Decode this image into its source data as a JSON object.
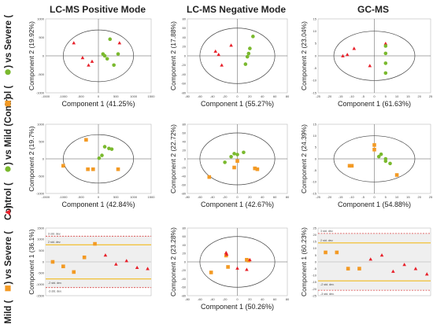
{
  "figure": {
    "column_titles": [
      "LC-MS Positive Mode",
      "LC-MS Negative Mode",
      "GC-MS"
    ],
    "row_labels": [
      {
        "pre": "Control (",
        "post": ") vs Severe (",
        "end": ")",
        "m1": "green-circle-icon",
        "m2": "red-triangle-icon"
      },
      {
        "pre": "Control (",
        "post": ") vs Mild (",
        "end": ")",
        "m1": "green-circle-icon",
        "m2": "orange-square-icon"
      },
      {
        "pre": "Mild (",
        "post": ") vs Severe (",
        "end": ")",
        "m1": "orange-square-icon",
        "m2": "red-triangle-icon"
      }
    ],
    "colors": {
      "control": "#7ab92e",
      "severe": "#e8202a",
      "mild": "#f39a24",
      "ellipse": "#444444",
      "band": "#efefef",
      "limit2": "#f2b400",
      "limit3": "#d94040"
    }
  },
  "chart_data": [
    {
      "type": "scatter",
      "id": "r0c0",
      "xlabel": "Component 1 (41.25%)",
      "ylabel": "Component 2 (19.92%)",
      "xlim": [
        -1500,
        1500
      ],
      "ylim": [
        -1000,
        1000
      ],
      "xticks": [
        -1500,
        -1000,
        -500,
        0,
        500,
        1000,
        1500
      ],
      "yticks": [
        -1000,
        -500,
        0,
        500,
        1000
      ],
      "ellipse": [
        [
          -1000,
          1000
        ],
        [
          -700,
          700
        ]
      ],
      "series": [
        {
          "group": "severe",
          "points": [
            [
              -700,
              350
            ],
            [
              -450,
              -50
            ],
            [
              -280,
              -250
            ],
            [
              -180,
              -150
            ],
            [
              600,
              350
            ]
          ]
        },
        {
          "group": "control",
          "points": [
            [
              130,
              50
            ],
            [
              180,
              0
            ],
            [
              330,
              450
            ],
            [
              440,
              -250
            ],
            [
              560,
              50
            ],
            [
              250,
              -80
            ]
          ]
        }
      ]
    },
    {
      "type": "scatter",
      "id": "r0c1",
      "xlabel": "Component 1 (55.27%)",
      "ylabel": "Component 2 (17.88%)",
      "xlim": [
        -80,
        80
      ],
      "ylim": [
        -80,
        80
      ],
      "xticks": [
        -80,
        -60,
        -40,
        -20,
        0,
        20,
        40,
        60,
        80
      ],
      "yticks": [
        -80,
        -60,
        -40,
        -20,
        0,
        20,
        40,
        60,
        80
      ],
      "ellipse": [
        [
          -60,
          60
        ],
        [
          -60,
          60
        ]
      ],
      "series": [
        {
          "group": "severe",
          "points": [
            [
              -35,
              10
            ],
            [
              -30,
              3
            ],
            [
              -25,
              -20
            ],
            [
              -10,
              23
            ]
          ]
        },
        {
          "group": "control",
          "points": [
            [
              13,
              -18
            ],
            [
              16,
              -2
            ],
            [
              18,
              5
            ],
            [
              20,
              16
            ],
            [
              25,
              42
            ]
          ]
        }
      ]
    },
    {
      "type": "scatter",
      "id": "r0c2",
      "xlabel": "Component 1 (61.63%)",
      "ylabel": "Component 2 (23.04%)",
      "xlim": [
        -25,
        25
      ],
      "ylim": [
        -15,
        15
      ],
      "xticks": [
        -25,
        -20,
        -15,
        -10,
        -5,
        0,
        5,
        10,
        15,
        20,
        25
      ],
      "yticks": [
        -15,
        -10,
        -5,
        0,
        5,
        10,
        15
      ],
      "ellipse": [
        [
          -18,
          18
        ],
        [
          -10,
          10
        ]
      ],
      "series": [
        {
          "group": "severe",
          "points": [
            [
              -14,
              0
            ],
            [
              -12,
              0.5
            ],
            [
              -9,
              3
            ],
            [
              -2,
              -4
            ],
            [
              5,
              5
            ]
          ]
        },
        {
          "group": "control",
          "points": [
            [
              5,
              -7
            ],
            [
              5,
              -3
            ],
            [
              5,
              1
            ],
            [
              5,
              4
            ]
          ]
        }
      ]
    },
    {
      "type": "scatter",
      "id": "r1c0",
      "xlabel": "Component 1 (42.84%)",
      "ylabel": "Component 2 (19.7%)",
      "xlim": [
        -1500,
        1500
      ],
      "ylim": [
        -1000,
        1000
      ],
      "xticks": [
        -1500,
        -1000,
        -500,
        0,
        500,
        1000,
        1500
      ],
      "yticks": [
        -1000,
        -500,
        0,
        500,
        1000
      ],
      "ellipse": [
        [
          -1000,
          1000
        ],
        [
          -700,
          700
        ]
      ],
      "series": [
        {
          "group": "mild",
          "points": [
            [
              -1000,
              -200
            ],
            [
              -350,
              550
            ],
            [
              -300,
              -300
            ],
            [
              -150,
              -300
            ],
            [
              560,
              -300
            ]
          ]
        },
        {
          "group": "control",
          "points": [
            [
              20,
              20
            ],
            [
              180,
              350
            ],
            [
              300,
              300
            ],
            [
              380,
              280
            ],
            [
              100,
              100
            ]
          ]
        }
      ]
    },
    {
      "type": "scatter",
      "id": "r1c1",
      "xlabel": "Component 1 (42.67%)",
      "ylabel": "Component 2 (22.72%)",
      "xlim": [
        -80,
        80
      ],
      "ylim": [
        -80,
        80
      ],
      "xticks": [
        -80,
        -60,
        -40,
        -20,
        0,
        20,
        40,
        60,
        80
      ],
      "yticks": [
        -80,
        -60,
        -40,
        -20,
        0,
        20,
        40,
        60,
        80
      ],
      "ellipse": [
        [
          -60,
          60
        ],
        [
          -60,
          60
        ]
      ],
      "series": [
        {
          "group": "mild",
          "points": [
            [
              -45,
              -42
            ],
            [
              -5,
              -20
            ],
            [
              0,
              -5
            ],
            [
              28,
              -22
            ],
            [
              32,
              -24
            ]
          ]
        },
        {
          "group": "control",
          "points": [
            [
              -20,
              -8
            ],
            [
              -10,
              5
            ],
            [
              -5,
              12
            ],
            [
              0,
              10
            ],
            [
              10,
              15
            ]
          ]
        }
      ]
    },
    {
      "type": "scatter",
      "id": "r1c2",
      "xlabel": "Component 1 (54.88%)",
      "ylabel": "Component 2 (24.39%)",
      "xlim": [
        -25,
        25
      ],
      "ylim": [
        -15,
        15
      ],
      "xticks": [
        -25,
        -20,
        -15,
        -10,
        -5,
        0,
        5,
        10,
        15,
        20,
        25
      ],
      "yticks": [
        -15,
        -10,
        -5,
        0,
        5,
        10,
        15
      ],
      "ellipse": [
        [
          -18,
          18
        ],
        [
          -10,
          10
        ]
      ],
      "series": [
        {
          "group": "mild",
          "points": [
            [
              -11,
              -3
            ],
            [
              -10,
              -3
            ],
            [
              0,
              6
            ],
            [
              0,
              4
            ],
            [
              10,
              -7
            ]
          ]
        },
        {
          "group": "control",
          "points": [
            [
              2,
              1
            ],
            [
              3,
              2
            ],
            [
              5,
              0
            ],
            [
              7,
              -2
            ],
            [
              5,
              -1
            ]
          ]
        }
      ]
    },
    {
      "type": "scatter",
      "id": "r2c0",
      "ylabel": "Component 1 (36.1%)",
      "xlim": [
        0,
        15
      ],
      "ylim": [
        -1500,
        1500
      ],
      "xticks": [],
      "yticks": [
        -1500,
        -1000,
        -500,
        0,
        500,
        1000,
        1500
      ],
      "limits": [
        {
          "value": 1140,
          "label": "3 std. dev.",
          "level": 3
        },
        {
          "value": 760,
          "label": "2 std. dev.",
          "level": 2
        },
        {
          "value": -760,
          "label": "-2 std. dev.",
          "level": 2
        },
        {
          "value": -1140,
          "label": "-3 std. dev.",
          "level": 3
        }
      ],
      "series": [
        {
          "group": "mild",
          "points": [
            [
              1,
              0
            ],
            [
              2.5,
              -200
            ],
            [
              4,
              -450
            ],
            [
              5.5,
              200
            ],
            [
              7,
              800
            ]
          ]
        },
        {
          "group": "severe",
          "points": [
            [
              8.5,
              300
            ],
            [
              10,
              -100
            ],
            [
              11.5,
              50
            ],
            [
              13,
              -250
            ],
            [
              14.5,
              -300
            ]
          ]
        }
      ]
    },
    {
      "type": "scatter",
      "id": "r2c1",
      "xlabel": "Component 1 (50.26%)",
      "ylabel": "Component 2 (23.28%)",
      "xlim": [
        -80,
        80
      ],
      "ylim": [
        -80,
        80
      ],
      "xticks": [
        -80,
        -60,
        -40,
        -20,
        0,
        20,
        40,
        60,
        80
      ],
      "yticks": [
        -80,
        -60,
        -40,
        -20,
        0,
        20,
        40,
        60,
        80
      ],
      "ellipse": [
        [
          -60,
          60
        ],
        [
          -60,
          60
        ]
      ],
      "series": [
        {
          "group": "mild",
          "points": [
            [
              -42,
              -25
            ],
            [
              -18,
              15
            ],
            [
              -15,
              -12
            ],
            [
              15,
              5
            ],
            [
              18,
              3
            ]
          ]
        },
        {
          "group": "severe",
          "points": [
            [
              -18,
              22
            ],
            [
              -17,
              18
            ],
            [
              0,
              -15
            ],
            [
              15,
              -18
            ],
            [
              20,
              5
            ]
          ]
        }
      ]
    },
    {
      "type": "scatter",
      "id": "r2c2",
      "ylabel": "Component 1 (60.23%)",
      "xlim": [
        0,
        15
      ],
      "ylim": [
        -25,
        25
      ],
      "xticks": [],
      "yticks": [
        -25,
        -20,
        -15,
        -10,
        -5,
        0,
        5,
        10,
        15,
        20,
        25
      ],
      "limits": [
        {
          "value": 21,
          "label": "3 std. dev.",
          "level": 3
        },
        {
          "value": 14,
          "label": "2 std. dev.",
          "level": 2
        },
        {
          "value": -14,
          "label": "-2 std. dev.",
          "level": 2
        },
        {
          "value": -21,
          "label": "-3 std. dev.",
          "level": 3
        }
      ],
      "series": [
        {
          "group": "mild",
          "points": [
            [
              1,
              7
            ],
            [
              2.5,
              7
            ],
            [
              4,
              -5
            ],
            [
              5.5,
              -5
            ]
          ]
        },
        {
          "group": "severe",
          "points": [
            [
              7,
              2
            ],
            [
              8.5,
              5
            ],
            [
              10,
              -7
            ],
            [
              11.5,
              -2
            ],
            [
              13,
              -5
            ],
            [
              14.5,
              -9
            ]
          ]
        }
      ]
    }
  ]
}
